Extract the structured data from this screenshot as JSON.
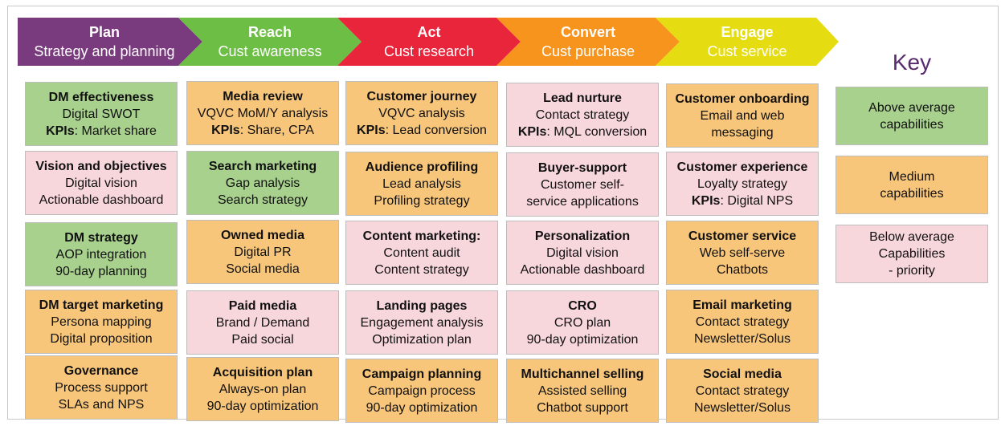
{
  "stages": [
    {
      "title": "Plan",
      "subtitle": "Strategy and planning",
      "color": "#7a3b7e"
    },
    {
      "title": "Reach",
      "subtitle": "Cust awareness",
      "color": "#6cbe45"
    },
    {
      "title": "Act",
      "subtitle": "Cust research",
      "color": "#e8253a"
    },
    {
      "title": "Convert",
      "subtitle": "Cust purchase",
      "color": "#f7941d"
    },
    {
      "title": "Engage",
      "subtitle": "Cust service",
      "color": "#e6dc12"
    }
  ],
  "columns": [
    [
      {
        "title": "DM effectiveness",
        "line1": "Digital SWOT",
        "kpi_label": "KPIs",
        "kpi_text": ": Market share",
        "level": "green"
      },
      {
        "title": "Vision and objectives",
        "line1": "Digital vision",
        "line2": "Actionable dashboard",
        "level": "pink"
      },
      {
        "title": "DM strategy",
        "line1": "AOP integration",
        "line2": "90-day planning",
        "level": "green"
      },
      {
        "title": "DM target marketing",
        "line1": "Persona mapping",
        "line2": "Digital proposition",
        "level": "orange"
      },
      {
        "title": "Governance",
        "line1": "Process support",
        "line2": "SLAs and NPS",
        "level": "orange"
      }
    ],
    [
      {
        "title": "Media review",
        "line1": "VQVC MoM/Y analysis",
        "kpi_label": "KPIs",
        "kpi_text": ": Share, CPA",
        "level": "orange"
      },
      {
        "title": "Search marketing",
        "line1": "Gap analysis",
        "line2": "Search strategy",
        "level": "green"
      },
      {
        "title": "Owned media",
        "line1": "Digital PR",
        "line2": "Social media",
        "level": "orange"
      },
      {
        "title": "Paid media",
        "line1": "Brand / Demand",
        "line2": "Paid social",
        "level": "pink"
      },
      {
        "title": "Acquisition plan",
        "line1": "Always-on plan",
        "line2": "90-day optimization",
        "level": "orange"
      }
    ],
    [
      {
        "title": "Customer journey",
        "line1": "VQVC analysis",
        "kpi_label": "KPIs",
        "kpi_text": ": Lead conversion",
        "level": "orange"
      },
      {
        "title": "Audience profiling",
        "line1": "Lead analysis",
        "line2": "Profiling strategy",
        "level": "orange"
      },
      {
        "title": "Content marketing:",
        "line1": "Content audit",
        "line2": "Content strategy",
        "level": "pink"
      },
      {
        "title": "Landing pages",
        "line1": "Engagement analysis",
        "line2": "Optimization plan",
        "level": "pink"
      },
      {
        "title": "Campaign planning",
        "line1": "Campaign process",
        "line2": "90-day optimization",
        "level": "orange"
      }
    ],
    [
      {
        "title": "Lead nurture",
        "line1": "Contact strategy",
        "kpi_label": "KPIs",
        "kpi_text": ": MQL conversion",
        "level": "pink"
      },
      {
        "title": "Buyer-support",
        "line1": "Customer self-",
        "line2": "service applications",
        "level": "pink"
      },
      {
        "title": "Personalization",
        "line1": "Digital vision",
        "line2": "Actionable dashboard",
        "level": "pink"
      },
      {
        "title": "CRO",
        "line1": "CRO plan",
        "line2": "90-day optimization",
        "level": "pink"
      },
      {
        "title": "Multichannel selling",
        "line1": "Assisted selling",
        "line2": "Chatbot support",
        "level": "orange"
      }
    ],
    [
      {
        "title": "Customer onboarding",
        "line1": "Email and web",
        "line2": "messaging",
        "level": "orange"
      },
      {
        "title": "Customer experience",
        "line1": "Loyalty strategy",
        "kpi_label": "KPIs",
        "kpi_text": ": Digital NPS",
        "level": "pink"
      },
      {
        "title": "Customer service",
        "line1": "Web self-serve",
        "line2": "Chatbots",
        "level": "orange"
      },
      {
        "title": "Email marketing",
        "line1": "Contact strategy",
        "line2": "Newsletter/Solus",
        "level": "orange"
      },
      {
        "title": "Social media",
        "line1": "Contact strategy",
        "line2": "Newsletter/Solus",
        "level": "orange"
      }
    ]
  ],
  "key": {
    "title": "Key",
    "items": [
      {
        "label": "Above average\ncapabilities",
        "level": "green"
      },
      {
        "label": "Medium\ncapabilities",
        "level": "orange"
      },
      {
        "label": "Below average\nCapabilities\n- priority",
        "level": "pink"
      }
    ]
  }
}
